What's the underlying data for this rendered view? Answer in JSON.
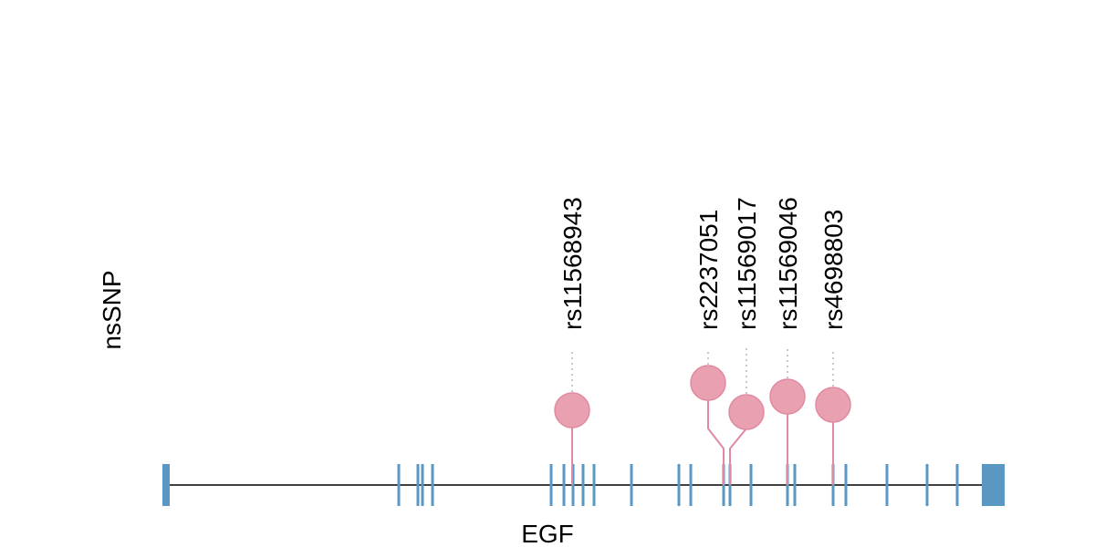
{
  "track_label": "nsSNP",
  "gene": {
    "name": "EGF",
    "color": "#5b97c3",
    "line_color": "#000000"
  },
  "snp_style": {
    "fill": "#e9a1b2",
    "stroke": "#e08aa1",
    "stalk": "#e08aa1",
    "guide": "#b5b5b5"
  },
  "snps": [
    {
      "id": "rs11568943"
    },
    {
      "id": "rs2237051"
    },
    {
      "id": "rs11569017"
    },
    {
      "id": "rs11569046"
    },
    {
      "id": "rs4698803"
    }
  ]
}
